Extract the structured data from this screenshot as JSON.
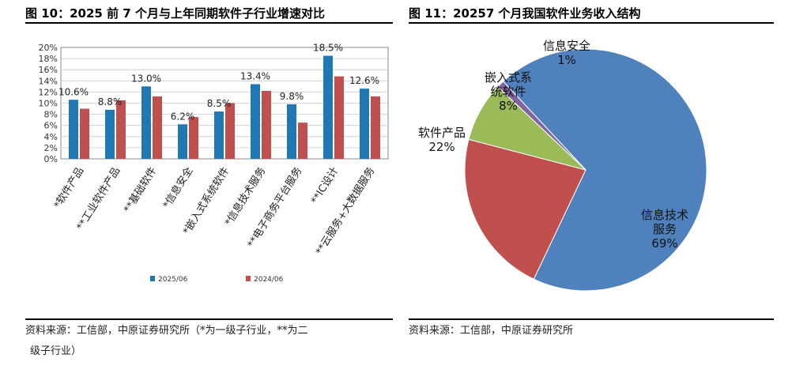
{
  "left": {
    "title": "图 10：2025 前 7 个月与上年同期软件子行业增速对比",
    "source_line1": "资料来源：工信部，中原证券研究所（*为一级子行业，**为二",
    "source_line2": "级子行业）"
  },
  "right": {
    "title": "图 11：20257 个月我国软件业务收入结构",
    "source": "资料来源：工信部，中原证券研究所"
  },
  "chart_data": [
    {
      "type": "bar",
      "title": "",
      "categories": [
        "*软件产品",
        "**工业软件产品",
        "**基础软件",
        "*信息安全",
        "*嵌入式系统软件",
        "*信息技术服务",
        "**电子商务平台服务",
        "**IC设计",
        "**云服务+大数据服务"
      ],
      "series": [
        {
          "name": "2025/06",
          "color": "#1f77b4",
          "values": [
            10.6,
            8.8,
            13.0,
            6.2,
            8.5,
            13.4,
            9.8,
            18.5,
            12.6
          ]
        },
        {
          "name": "2024/06",
          "color": "#c0504d",
          "values": [
            9.0,
            10.5,
            11.2,
            7.5,
            10.0,
            12.2,
            6.5,
            14.8,
            11.2
          ]
        }
      ],
      "data_labels": [
        "10.6%",
        "8.8%",
        "13.0%",
        "6.2%",
        "8.5%",
        "13.4%",
        "9.8%",
        "18.5%",
        "12.6%"
      ],
      "yticks": [
        "0%",
        "2%",
        "4%",
        "6%",
        "8%",
        "10%",
        "12%",
        "14%",
        "16%",
        "18%",
        "20%"
      ],
      "ylim": [
        0,
        20
      ],
      "xlabel": "",
      "ylabel": "",
      "grid": true,
      "legend": "bottom"
    },
    {
      "type": "pie",
      "title": "",
      "slices": [
        {
          "label_lines": [
            "信息技术",
            "服务"
          ],
          "pct_label": "69%",
          "value": 69,
          "color": "#4f81bd"
        },
        {
          "label_lines": [
            "软件产品"
          ],
          "pct_label": "22%",
          "value": 22,
          "color": "#c0504d"
        },
        {
          "label_lines": [
            "嵌入式系",
            "统软件"
          ],
          "pct_label": "8%",
          "value": 8,
          "color": "#9bbb59"
        },
        {
          "label_lines": [
            "信息安全"
          ],
          "pct_label": "1%",
          "value": 1,
          "color": "#8064a2"
        }
      ]
    }
  ]
}
